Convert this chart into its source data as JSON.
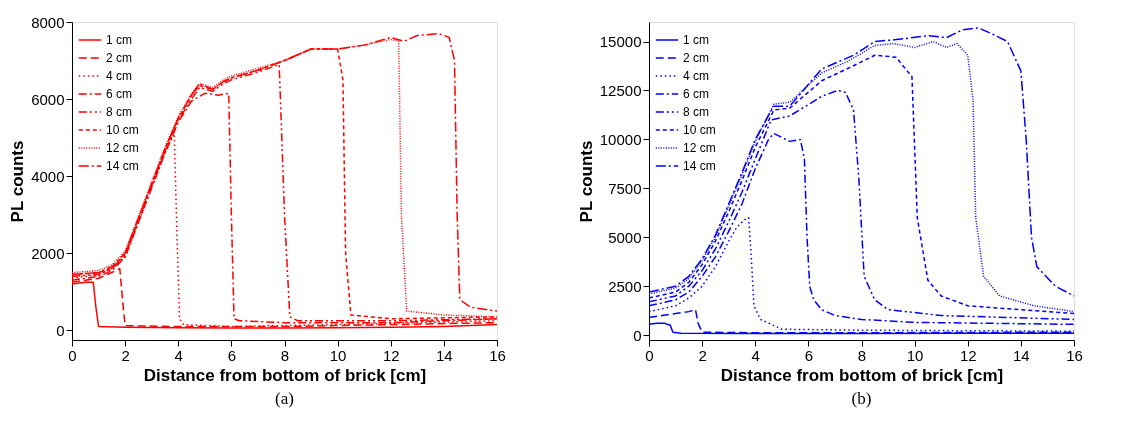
{
  "chart_data": [
    {
      "type": "line",
      "title": "(a)",
      "xlabel": "Distance from bottom of brick [cm]",
      "ylabel": "PL counts",
      "xlim": [
        0,
        16
      ],
      "xticks": [
        0,
        2,
        4,
        6,
        8,
        10,
        12,
        14,
        16
      ],
      "ylim": [
        -250,
        8000
      ],
      "yticks": [
        0,
        2000,
        4000,
        6000,
        8000
      ],
      "grid": false,
      "legend": "top left",
      "marker": "none",
      "series": [
        {
          "name": "1 cm",
          "color": "#ff0000",
          "line_style": "solid",
          "x": [
            0,
            0.5,
            0.8,
            0.9,
            1.0,
            2,
            4,
            6,
            8,
            10,
            12,
            14,
            16
          ],
          "values": [
            1200,
            1250,
            1250,
            600,
            100,
            80,
            70,
            60,
            60,
            70,
            80,
            100,
            150
          ]
        },
        {
          "name": "2 cm",
          "color": "#ff0000",
          "line_style": "dashed",
          "x": [
            0,
            0.5,
            1,
            1.5,
            1.8,
            1.9,
            2.0,
            4,
            8,
            12,
            16
          ],
          "values": [
            1250,
            1300,
            1350,
            1500,
            1600,
            800,
            120,
            100,
            100,
            150,
            200
          ]
        },
        {
          "name": "4 cm",
          "color": "#ff0000",
          "line_style": "dotted",
          "x": [
            0,
            0.5,
            1,
            1.5,
            2,
            2.5,
            3,
            3.5,
            3.85,
            3.95,
            4.05,
            4.2,
            6,
            10,
            16
          ],
          "values": [
            1350,
            1400,
            1450,
            1600,
            1900,
            2800,
            3700,
            4600,
            5100,
            2500,
            300,
            150,
            100,
            150,
            250
          ]
        },
        {
          "name": "6 cm",
          "color": "#ff0000",
          "line_style": "dashdot",
          "x": [
            0,
            1,
            1.5,
            2,
            2.5,
            3,
            3.5,
            4,
            4.5,
            5,
            5.5,
            5.9,
            6.0,
            6.1,
            6.3,
            8,
            12,
            16
          ],
          "values": [
            1300,
            1400,
            1550,
            1900,
            2800,
            3700,
            4600,
            5400,
            5950,
            6150,
            6100,
            6150,
            3000,
            300,
            250,
            200,
            200,
            300
          ]
        },
        {
          "name": "8 cm",
          "color": "#ff0000",
          "line_style": "dashdotdot",
          "x": [
            0,
            1,
            1.5,
            2,
            2.5,
            3,
            3.5,
            4,
            4.5,
            4.8,
            5.3,
            5.7,
            6,
            7,
            7.8,
            8.0,
            8.2,
            8.5,
            12,
            16
          ],
          "values": [
            1400,
            1450,
            1600,
            1950,
            2850,
            3750,
            4650,
            5450,
            6000,
            6300,
            6200,
            6400,
            6500,
            6700,
            6900,
            3000,
            350,
            250,
            250,
            300
          ]
        },
        {
          "name": "10 cm",
          "color": "#ff0000",
          "line_style": "shortdash",
          "x": [
            0,
            1,
            1.5,
            2,
            2.5,
            3,
            3.5,
            4,
            4.5,
            4.8,
            5.3,
            5.7,
            6,
            7,
            8,
            9,
            10,
            10.2,
            10.3,
            10.5,
            12,
            16
          ],
          "values": [
            1450,
            1500,
            1600,
            2000,
            2900,
            3800,
            4700,
            5500,
            6100,
            6350,
            6250,
            6450,
            6550,
            6750,
            7000,
            7300,
            7300,
            6500,
            2000,
            400,
            300,
            350
          ]
        },
        {
          "name": "12 cm",
          "color": "#ff0000",
          "line_style": "densedot",
          "x": [
            0,
            1,
            1.5,
            2,
            2.5,
            3,
            3.5,
            4,
            4.5,
            4.8,
            5.3,
            5.7,
            6,
            7,
            8,
            9,
            10,
            11,
            12,
            12.3,
            12.4,
            12.6,
            14,
            16
          ],
          "values": [
            1500,
            1550,
            1700,
            2050,
            2950,
            3850,
            4750,
            5550,
            6150,
            6400,
            6300,
            6500,
            6600,
            6800,
            7000,
            7300,
            7300,
            7400,
            7550,
            7500,
            3000,
            500,
            400,
            350
          ]
        },
        {
          "name": "14 cm",
          "color": "#ff0000",
          "line_style": "longdashdot",
          "x": [
            0,
            1,
            1.5,
            2,
            2.5,
            3,
            3.5,
            4,
            4.5,
            4.8,
            5.3,
            5.7,
            6,
            7,
            8,
            9,
            10,
            11,
            12,
            12.5,
            13,
            13.8,
            14.2,
            14.4,
            14.5,
            14.6,
            15,
            16
          ],
          "values": [
            1450,
            1500,
            1650,
            2000,
            2900,
            3800,
            4700,
            5500,
            6100,
            6400,
            6250,
            6450,
            6550,
            6750,
            7000,
            7300,
            7300,
            7400,
            7600,
            7500,
            7650,
            7700,
            7600,
            7000,
            3000,
            800,
            600,
            500
          ]
        }
      ]
    },
    {
      "type": "line",
      "title": "(b)",
      "xlabel": "Distance from bottom of brick [cm]",
      "ylabel": "PL counts",
      "xlim": [
        0,
        16
      ],
      "xticks": [
        0,
        2,
        4,
        6,
        8,
        10,
        12,
        14,
        16
      ],
      "ylim": [
        -250,
        16000
      ],
      "yticks": [
        0,
        2500,
        5000,
        7500,
        10000,
        12500,
        15000
      ],
      "grid": false,
      "legend": "top left",
      "marker": "none",
      "series": [
        {
          "name": "1 cm",
          "color": "#0000ff",
          "line_style": "solid",
          "x": [
            0,
            0.3,
            0.6,
            0.8,
            0.9,
            1.2,
            4,
            8,
            12,
            16
          ],
          "values": [
            550,
            600,
            600,
            500,
            150,
            100,
            80,
            80,
            90,
            100
          ]
        },
        {
          "name": "2 cm",
          "color": "#0000ff",
          "line_style": "dashed",
          "x": [
            0,
            0.5,
            1,
            1.5,
            1.75,
            1.85,
            2.0,
            4,
            8,
            16
          ],
          "values": [
            900,
            1000,
            1100,
            1200,
            1300,
            600,
            150,
            120,
            120,
            150
          ]
        },
        {
          "name": "4 cm",
          "color": "#0000ff",
          "line_style": "dotted",
          "x": [
            0,
            1,
            1.5,
            2,
            2.5,
            3,
            3.3,
            3.6,
            3.75,
            3.85,
            3.95,
            4.2,
            5,
            8,
            16
          ],
          "values": [
            1200,
            1500,
            1900,
            2500,
            3500,
            4800,
            5500,
            5900,
            6000,
            4000,
            1500,
            800,
            300,
            250,
            200
          ]
        },
        {
          "name": "6 cm",
          "color": "#0000ff",
          "line_style": "dashdot",
          "x": [
            0,
            1,
            1.5,
            2,
            2.5,
            3,
            3.5,
            4,
            4.5,
            4.7,
            5.3,
            5.7,
            5.85,
            5.95,
            6.05,
            6.2,
            6.5,
            7,
            8,
            10,
            16
          ],
          "values": [
            1500,
            1800,
            2200,
            3000,
            4000,
            5300,
            6700,
            8500,
            10000,
            10300,
            9900,
            10000,
            9000,
            5000,
            2500,
            1800,
            1300,
            1000,
            800,
            650,
            550
          ]
        },
        {
          "name": "8 cm",
          "color": "#0000ff",
          "line_style": "dashdotdot",
          "x": [
            0,
            1,
            1.5,
            2,
            2.5,
            3,
            3.5,
            4,
            4.6,
            5.3,
            6.5,
            7.1,
            7.4,
            7.7,
            7.9,
            8.1,
            8.5,
            9,
            11,
            16
          ],
          "values": [
            1700,
            2000,
            2500,
            3300,
            4400,
            5800,
            7300,
            9000,
            11000,
            11200,
            12200,
            12500,
            12400,
            11500,
            8000,
            3000,
            1800,
            1300,
            1000,
            800
          ]
        },
        {
          "name": "10 cm",
          "color": "#0000ff",
          "line_style": "shortdash",
          "x": [
            0,
            1,
            1.5,
            2,
            2.5,
            3,
            3.5,
            4,
            4.7,
            5.3,
            6.5,
            7.6,
            8.5,
            9.3,
            9.9,
            10.1,
            10.5,
            11,
            12,
            16
          ],
          "values": [
            1900,
            2200,
            2700,
            3600,
            4800,
            6300,
            7900,
            9600,
            11500,
            11600,
            13000,
            13700,
            14300,
            14200,
            13200,
            6000,
            2800,
            2000,
            1500,
            1100
          ]
        },
        {
          "name": "12 cm",
          "color": "#0000ff",
          "line_style": "densedot",
          "x": [
            0,
            1,
            1.5,
            2,
            2.5,
            3,
            3.5,
            4,
            4.7,
            5.3,
            6.5,
            7.5,
            8.5,
            9.2,
            10,
            10.7,
            11.2,
            11.6,
            12.0,
            12.2,
            12.3,
            12.6,
            13.2,
            14.5,
            16
          ],
          "values": [
            2100,
            2400,
            2900,
            3800,
            5000,
            6600,
            8200,
            9900,
            11800,
            11900,
            13400,
            14000,
            14800,
            14900,
            14700,
            15000,
            14700,
            14900,
            14300,
            12000,
            6000,
            3000,
            2000,
            1500,
            1200
          ]
        },
        {
          "name": "14 cm",
          "color": "#0000ff",
          "line_style": "longdashdot",
          "x": [
            0,
            1,
            1.5,
            2,
            2.5,
            3,
            3.5,
            4,
            4.7,
            5.3,
            6.5,
            7.7,
            8.5,
            9.3,
            10.5,
            11.2,
            11.8,
            12.4,
            12.9,
            13.5,
            14.0,
            14.2,
            14.4,
            14.6,
            15.3,
            16
          ],
          "values": [
            2200,
            2500,
            3000,
            3900,
            5100,
            6700,
            8300,
            10000,
            11700,
            11700,
            13600,
            14300,
            15000,
            15100,
            15300,
            15200,
            15600,
            15700,
            15400,
            15000,
            13500,
            10000,
            5000,
            3500,
            2500,
            2000
          ]
        }
      ]
    }
  ]
}
